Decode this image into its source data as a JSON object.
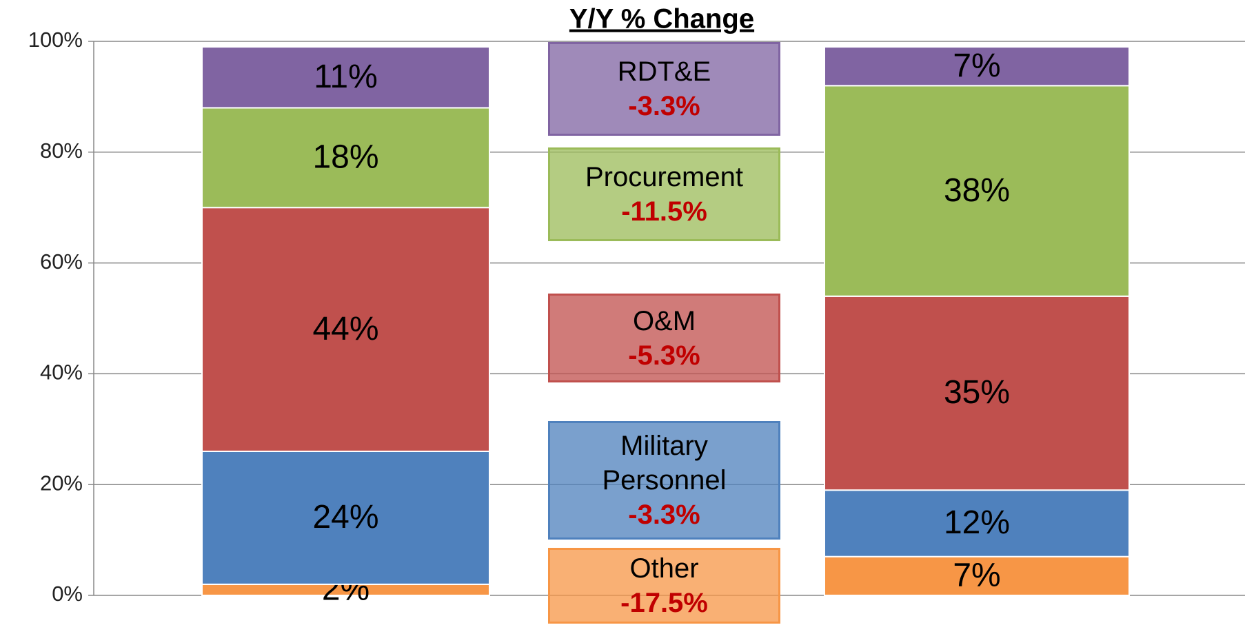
{
  "chart_data": {
    "type": "stacked_bar",
    "title": "Y/Y % Change",
    "categories": [
      null,
      null
    ],
    "series": [
      {
        "name": "Other",
        "yoy_change": "-17.5%",
        "color": "#f79646",
        "values": [
          2,
          7
        ],
        "value_labels": [
          "2%",
          "7%"
        ]
      },
      {
        "name": "Military Personnel",
        "yoy_change": "-3.3%",
        "color": "#4f81bd",
        "values": [
          24,
          12
        ],
        "value_labels": [
          "24%",
          "12%"
        ]
      },
      {
        "name": "O&M",
        "yoy_change": "-5.3%",
        "color": "#c0504d",
        "values": [
          44,
          35
        ],
        "value_labels": [
          "44%",
          "35%"
        ]
      },
      {
        "name": "Procurement",
        "yoy_change": "-11.5%",
        "color": "#9bbb59",
        "values": [
          18,
          38
        ],
        "value_labels": [
          "18%",
          "38%"
        ]
      },
      {
        "name": "RDT&E",
        "yoy_change": "-3.3%",
        "color": "#8064a2",
        "values": [
          11,
          7
        ],
        "value_labels": [
          "11%",
          "7%"
        ]
      }
    ],
    "ylim": [
      0,
      100
    ],
    "yticks": [
      {
        "value": 0,
        "label": "0%"
      },
      {
        "value": 20,
        "label": "20%"
      },
      {
        "value": 40,
        "label": "40%"
      },
      {
        "value": 60,
        "label": "60%"
      },
      {
        "value": 80,
        "label": "80%"
      },
      {
        "value": 100,
        "label": "100%"
      }
    ],
    "grid": true
  }
}
